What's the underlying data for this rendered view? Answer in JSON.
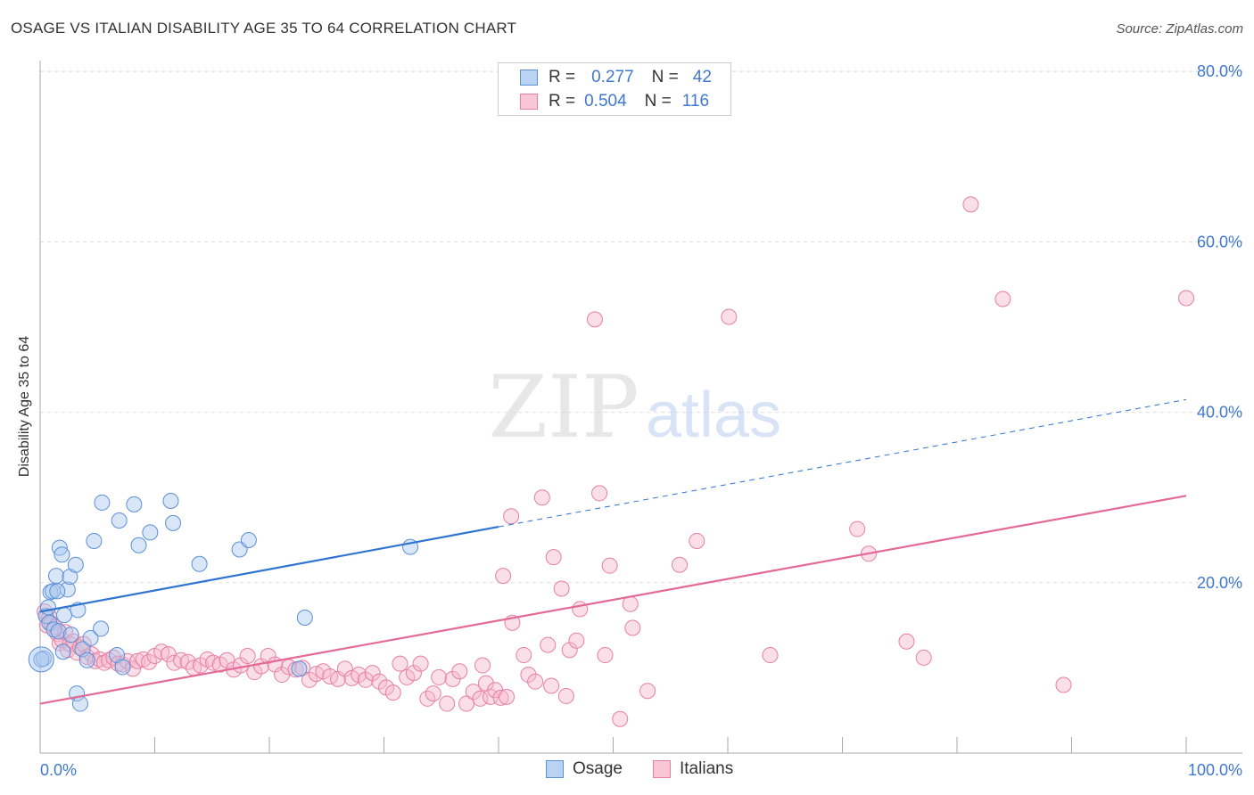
{
  "title": "OSAGE VS ITALIAN DISABILITY AGE 35 TO 64 CORRELATION CHART",
  "source": "Source: ZipAtlas.com",
  "watermark": {
    "zip": "ZIP",
    "atlas": "atlas"
  },
  "legend": {
    "rows": [
      {
        "r_label": "R =",
        "r_value": "0.277",
        "n_label": "N =",
        "n_value": "42"
      },
      {
        "r_label": "R =",
        "r_value": "0.504",
        "n_label": "N =",
        "n_value": "116"
      }
    ]
  },
  "bottom_legend": [
    "Osage",
    "Italians"
  ],
  "colors": {
    "osage_fill": "#a9c8f0",
    "osage_stroke": "#5b8fd6",
    "osage_line": "#2f74d0",
    "italians_fill": "#f6b8cb",
    "italians_stroke": "#e77fa2",
    "italians_line": "#e46a96",
    "tick_text": "#3f78cf",
    "grid": "#dddddd"
  },
  "chart_data": {
    "type": "scatter",
    "title": "OSAGE VS ITALIAN DISABILITY AGE 35 TO 64 CORRELATION CHART",
    "xlabel": "",
    "ylabel": "Disability Age 35 to 64",
    "xlim": [
      0,
      100
    ],
    "ylim": [
      0,
      80
    ],
    "y_ticks": [
      20,
      40,
      60,
      80
    ],
    "y_tick_labels": [
      "20.0%",
      "40.0%",
      "60.0%",
      "80.0%"
    ],
    "x_tick_labels": [
      "0.0%",
      "100.0%"
    ],
    "grid": true,
    "legend_position": "top-center",
    "series": [
      {
        "name": "Osage",
        "r": 0.277,
        "n": 42,
        "trend": {
          "x0": 0,
          "y0": 16.6,
          "x1": 100,
          "y1": 41.5,
          "solid_until": 40
        },
        "points": [
          [
            0.3,
            11.1
          ],
          [
            0.5,
            16.1
          ],
          [
            0.7,
            17.1
          ],
          [
            0.8,
            15.3
          ],
          [
            0.9,
            18.9
          ],
          [
            1.1,
            19.0
          ],
          [
            1.2,
            14.5
          ],
          [
            1.4,
            20.8
          ],
          [
            1.6,
            14.3
          ],
          [
            1.7,
            24.1
          ],
          [
            1.9,
            23.3
          ],
          [
            2.0,
            11.9
          ],
          [
            2.1,
            16.2
          ],
          [
            2.4,
            19.2
          ],
          [
            2.6,
            20.7
          ],
          [
            2.7,
            13.9
          ],
          [
            3.1,
            22.1
          ],
          [
            3.3,
            16.8
          ],
          [
            3.2,
            7.0
          ],
          [
            3.5,
            5.8
          ],
          [
            3.7,
            12.2
          ],
          [
            4.1,
            10.9
          ],
          [
            4.4,
            13.5
          ],
          [
            4.7,
            24.9
          ],
          [
            5.3,
            14.6
          ],
          [
            5.4,
            29.4
          ],
          [
            6.9,
            27.3
          ],
          [
            6.7,
            11.5
          ],
          [
            7.2,
            10.1
          ],
          [
            8.2,
            29.2
          ],
          [
            8.6,
            24.4
          ],
          [
            9.6,
            25.9
          ],
          [
            11.4,
            29.6
          ],
          [
            11.6,
            27.0
          ],
          [
            13.9,
            22.2
          ],
          [
            17.4,
            23.9
          ],
          [
            18.2,
            25.0
          ],
          [
            22.6,
            9.9
          ],
          [
            23.1,
            15.9
          ],
          [
            32.3,
            24.2
          ],
          [
            0.1,
            11.0
          ],
          [
            1.5,
            19.0
          ]
        ]
      },
      {
        "name": "Italians",
        "r": 0.504,
        "n": 116,
        "trend": {
          "x0": 0,
          "y0": 5.8,
          "x1": 100,
          "y1": 30.2
        },
        "points": [
          [
            0.4,
            16.6
          ],
          [
            0.6,
            15.0
          ],
          [
            0.8,
            16.0
          ],
          [
            1.0,
            15.2
          ],
          [
            1.3,
            14.8
          ],
          [
            1.5,
            14.0
          ],
          [
            1.7,
            12.9
          ],
          [
            1.9,
            13.3
          ],
          [
            2.2,
            14.2
          ],
          [
            2.4,
            12.1
          ],
          [
            2.6,
            12.8
          ],
          [
            2.9,
            13.1
          ],
          [
            3.2,
            11.8
          ],
          [
            3.5,
            12.4
          ],
          [
            3.8,
            12.8
          ],
          [
            4.1,
            11.3
          ],
          [
            4.5,
            11.6
          ],
          [
            4.8,
            10.8
          ],
          [
            5.2,
            11.0
          ],
          [
            5.6,
            10.6
          ],
          [
            6.0,
            10.9
          ],
          [
            6.4,
            11.2
          ],
          [
            6.8,
            10.5
          ],
          [
            7.2,
            10.4
          ],
          [
            7.6,
            10.8
          ],
          [
            8.1,
            9.9
          ],
          [
            8.5,
            10.8
          ],
          [
            9.0,
            11.0
          ],
          [
            9.5,
            10.7
          ],
          [
            10.0,
            11.4
          ],
          [
            10.6,
            11.9
          ],
          [
            11.2,
            11.6
          ],
          [
            11.7,
            10.6
          ],
          [
            12.3,
            10.9
          ],
          [
            12.9,
            10.7
          ],
          [
            13.4,
            10.0
          ],
          [
            14.0,
            10.3
          ],
          [
            14.6,
            11.0
          ],
          [
            15.1,
            10.6
          ],
          [
            15.7,
            10.4
          ],
          [
            16.3,
            10.9
          ],
          [
            16.9,
            9.8
          ],
          [
            17.5,
            10.3
          ],
          [
            18.1,
            11.4
          ],
          [
            18.7,
            9.5
          ],
          [
            19.3,
            10.2
          ],
          [
            19.9,
            11.4
          ],
          [
            20.5,
            10.4
          ],
          [
            21.1,
            9.2
          ],
          [
            21.7,
            10.1
          ],
          [
            22.3,
            9.8
          ],
          [
            22.9,
            10.0
          ],
          [
            23.5,
            8.6
          ],
          [
            24.1,
            9.3
          ],
          [
            24.7,
            9.6
          ],
          [
            25.3,
            9.0
          ],
          [
            26.0,
            8.7
          ],
          [
            26.6,
            9.9
          ],
          [
            27.2,
            8.8
          ],
          [
            27.8,
            9.2
          ],
          [
            28.4,
            8.6
          ],
          [
            29.0,
            9.4
          ],
          [
            29.6,
            8.4
          ],
          [
            30.2,
            7.7
          ],
          [
            30.8,
            7.1
          ],
          [
            31.4,
            10.5
          ],
          [
            32.0,
            8.9
          ],
          [
            32.6,
            9.4
          ],
          [
            33.2,
            10.5
          ],
          [
            33.8,
            6.4
          ],
          [
            34.3,
            7.0
          ],
          [
            34.8,
            8.9
          ],
          [
            35.5,
            5.8
          ],
          [
            36.0,
            8.7
          ],
          [
            36.6,
            9.6
          ],
          [
            37.2,
            5.8
          ],
          [
            37.8,
            7.2
          ],
          [
            38.4,
            6.4
          ],
          [
            38.9,
            8.2
          ],
          [
            39.3,
            6.6
          ],
          [
            39.7,
            7.4
          ],
          [
            40.2,
            6.5
          ],
          [
            40.7,
            6.6
          ],
          [
            38.6,
            10.3
          ],
          [
            40.4,
            20.8
          ],
          [
            41.2,
            15.3
          ],
          [
            41.1,
            27.8
          ],
          [
            42.2,
            11.5
          ],
          [
            42.6,
            9.2
          ],
          [
            43.2,
            8.4
          ],
          [
            43.8,
            30.0
          ],
          [
            44.3,
            12.7
          ],
          [
            44.6,
            7.9
          ],
          [
            44.8,
            23.0
          ],
          [
            45.5,
            19.3
          ],
          [
            45.9,
            6.7
          ],
          [
            46.2,
            12.1
          ],
          [
            46.8,
            13.2
          ],
          [
            47.1,
            16.9
          ],
          [
            48.4,
            50.9
          ],
          [
            48.8,
            30.5
          ],
          [
            49.3,
            11.5
          ],
          [
            49.7,
            22.0
          ],
          [
            50.6,
            4.0
          ],
          [
            51.5,
            17.5
          ],
          [
            51.7,
            14.7
          ],
          [
            53.0,
            7.3
          ],
          [
            55.8,
            22.1
          ],
          [
            57.3,
            24.9
          ],
          [
            60.1,
            51.2
          ],
          [
            63.7,
            11.5
          ],
          [
            71.3,
            26.3
          ],
          [
            72.3,
            23.4
          ],
          [
            75.6,
            13.1
          ],
          [
            77.1,
            11.2
          ],
          [
            81.2,
            64.4
          ],
          [
            84.0,
            53.3
          ],
          [
            89.3,
            8.0
          ],
          [
            100.0,
            53.4
          ]
        ]
      }
    ]
  }
}
